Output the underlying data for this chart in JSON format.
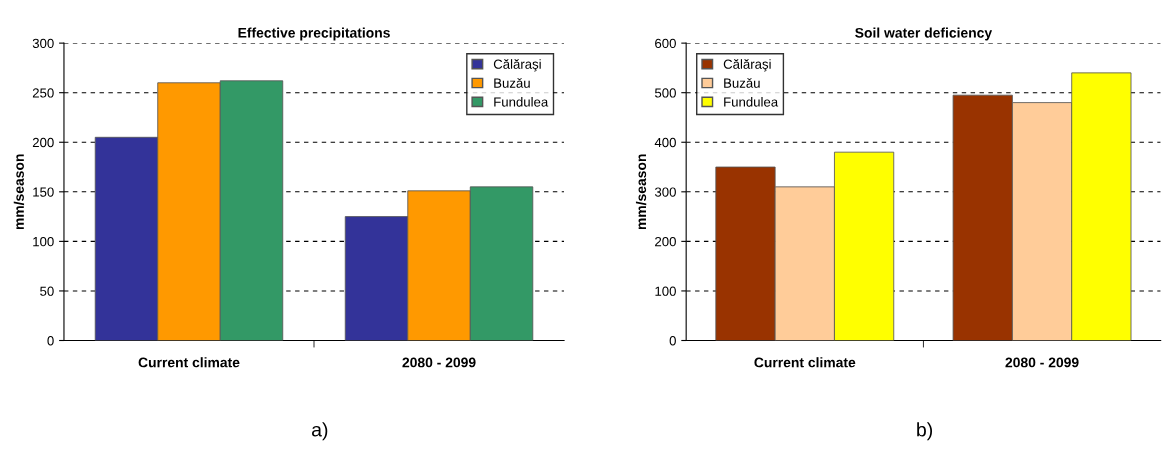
{
  "chart_data": [
    {
      "type": "bar",
      "title": "Effective precipitations",
      "ylabel": "mm/season",
      "categories": [
        "Current climate",
        "2080 - 2099"
      ],
      "series": [
        {
          "name": "Călăraşi",
          "color": "#333399",
          "values": [
            205,
            125
          ]
        },
        {
          "name": "Buzău",
          "color": "#ff9900",
          "values": [
            260,
            151
          ]
        },
        {
          "name": "Fundulea",
          "color": "#339966",
          "values": [
            262,
            155
          ]
        }
      ],
      "ylim": [
        0,
        300
      ],
      "yticks": [
        0,
        50,
        100,
        150,
        200,
        250,
        300
      ],
      "grid": "y",
      "legend": "top right",
      "annotations": [
        "a)"
      ]
    },
    {
      "type": "bar",
      "title": "Soil water deficiency",
      "ylabel": "mm/season",
      "categories": [
        "Current climate",
        "2080 - 2099"
      ],
      "series": [
        {
          "name": "Călăraşi",
          "color": "#993300",
          "values": [
            350,
            495
          ]
        },
        {
          "name": "Buzău",
          "color": "#ffcc99",
          "values": [
            310,
            480
          ]
        },
        {
          "name": "Fundulea",
          "color": "#ffff00",
          "values": [
            380,
            540
          ]
        }
      ],
      "ylim": [
        0,
        600
      ],
      "yticks": [
        0,
        100,
        200,
        300,
        400,
        500,
        600
      ],
      "grid": "y",
      "legend": "top left",
      "annotations": [
        "b)"
      ]
    }
  ]
}
